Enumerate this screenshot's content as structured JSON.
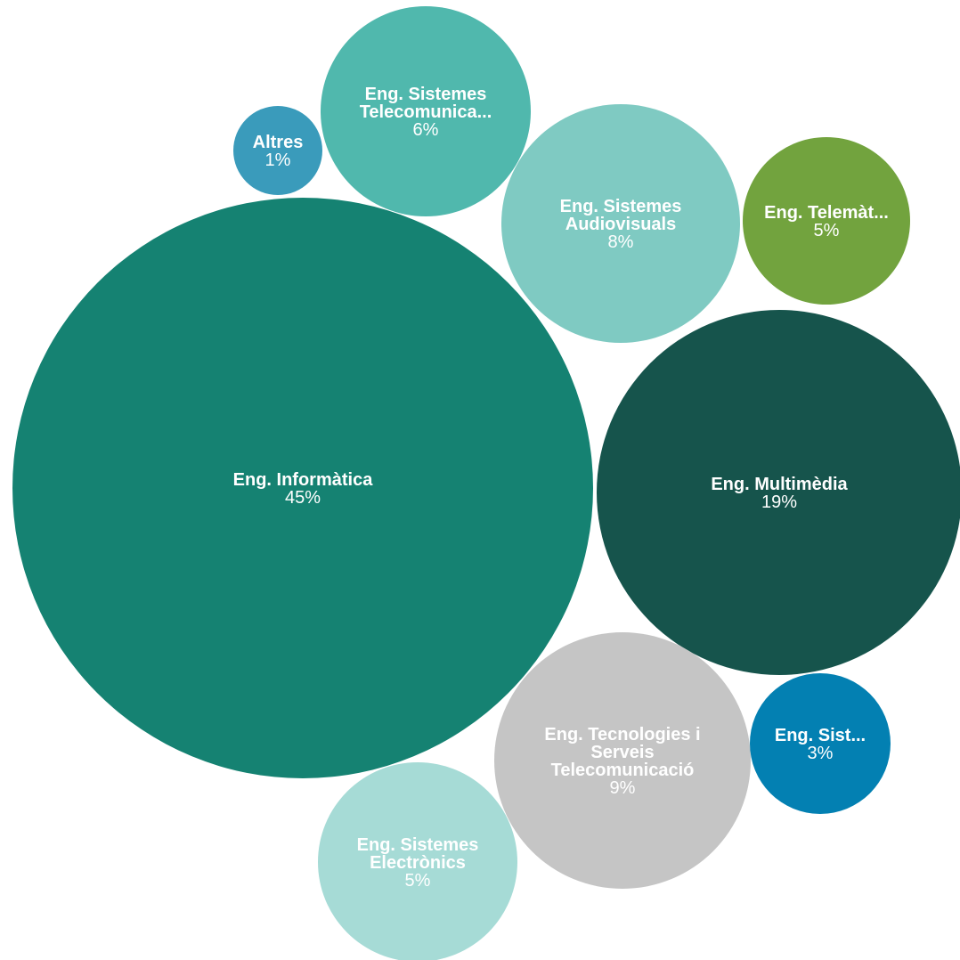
{
  "chart_data": {
    "type": "bubble",
    "unit": "%",
    "series": [
      {
        "name": "Eng. Informàtica",
        "label_lines": [
          "Eng. Informàtica"
        ],
        "value": 45,
        "value_label": "45%",
        "color": "#158272"
      },
      {
        "name": "Eng. Multimèdia",
        "label_lines": [
          "Eng. Multimèdia"
        ],
        "value": 19,
        "value_label": "19%",
        "color": "#16544c"
      },
      {
        "name": "Eng. Tecnologies i Serveis Telecomunicació",
        "label_lines": [
          "Eng. Tecnologies i",
          "Serveis",
          "Telecomunicació"
        ],
        "value": 9,
        "value_label": "9%",
        "color": "#c5c5c5"
      },
      {
        "name": "Eng. Sistemes Audiovisuals",
        "label_lines": [
          "Eng. Sistemes",
          "Audiovisuals"
        ],
        "value": 8,
        "value_label": "8%",
        "color": "#7fcac2"
      },
      {
        "name": "Eng. Sistemes Telecomunica...",
        "label_lines": [
          "Eng. Sistemes",
          "Telecomunica..."
        ],
        "value": 6,
        "value_label": "6%",
        "color": "#50b8ad"
      },
      {
        "name": "Eng. Telemàt...",
        "label_lines": [
          "Eng. Telemàt..."
        ],
        "value": 5,
        "value_label": "5%",
        "color": "#72a33e"
      },
      {
        "name": "Eng. Sistemes Electrònics",
        "label_lines": [
          "Eng. Sistemes",
          "Electrònics"
        ],
        "value": 5,
        "value_label": "5%",
        "color": "#a6dbd6"
      },
      {
        "name": "Eng. Sist...",
        "label_lines": [
          "Eng. Sist..."
        ],
        "value": 3,
        "value_label": "3%",
        "color": "#0380b2"
      },
      {
        "name": "Altres",
        "label_lines": [
          "Altres"
        ],
        "value": 1,
        "value_label": "1%",
        "color": "#3a9bbb"
      }
    ]
  }
}
